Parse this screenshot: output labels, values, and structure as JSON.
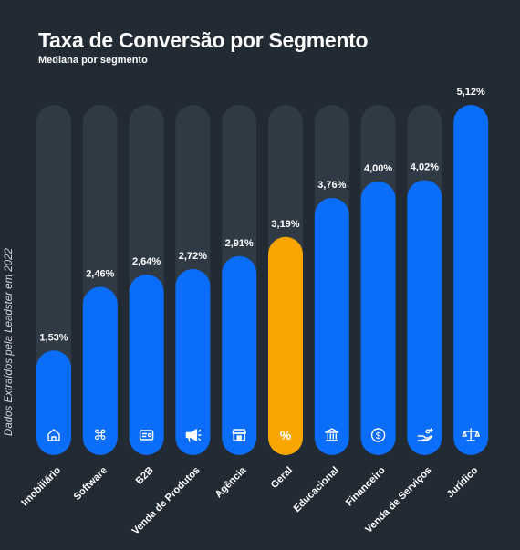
{
  "chart_data": {
    "type": "bar",
    "title": "Taxa de Conversão por Segmento",
    "subtitle": "Mediana por segmento",
    "source": "Dados Extraídos pela Leadster em 2022",
    "categories": [
      "Imobiliário",
      "Software",
      "B2B",
      "Venda de Produtos",
      "Agência",
      "Geral",
      "Educacional",
      "Financeiro",
      "Venda de Serviços",
      "Jurídico"
    ],
    "values": [
      1.53,
      2.46,
      2.64,
      2.72,
      2.91,
      3.19,
      3.76,
      4.0,
      4.02,
      5.12
    ],
    "value_labels": [
      "1,53%",
      "2,46%",
      "2,64%",
      "2,72%",
      "2,91%",
      "3,19%",
      "3,76%",
      "4,00%",
      "4,02%",
      "5,12%"
    ],
    "icons": [
      "house-icon",
      "command-icon",
      "id-card-icon",
      "megaphone-icon",
      "storefront-icon",
      "percent-icon",
      "institution-icon",
      "dollar-coin-icon",
      "hand-service-icon",
      "scales-icon"
    ],
    "ylim": [
      0,
      5.12
    ],
    "grid": false,
    "legend": "none",
    "colors": {
      "bar": "#0a6dfc",
      "highlight": "#f9a602",
      "track": "#2f3a45",
      "background": "#222a33",
      "text": "#ffffff"
    },
    "highlight_category": "Geral"
  }
}
